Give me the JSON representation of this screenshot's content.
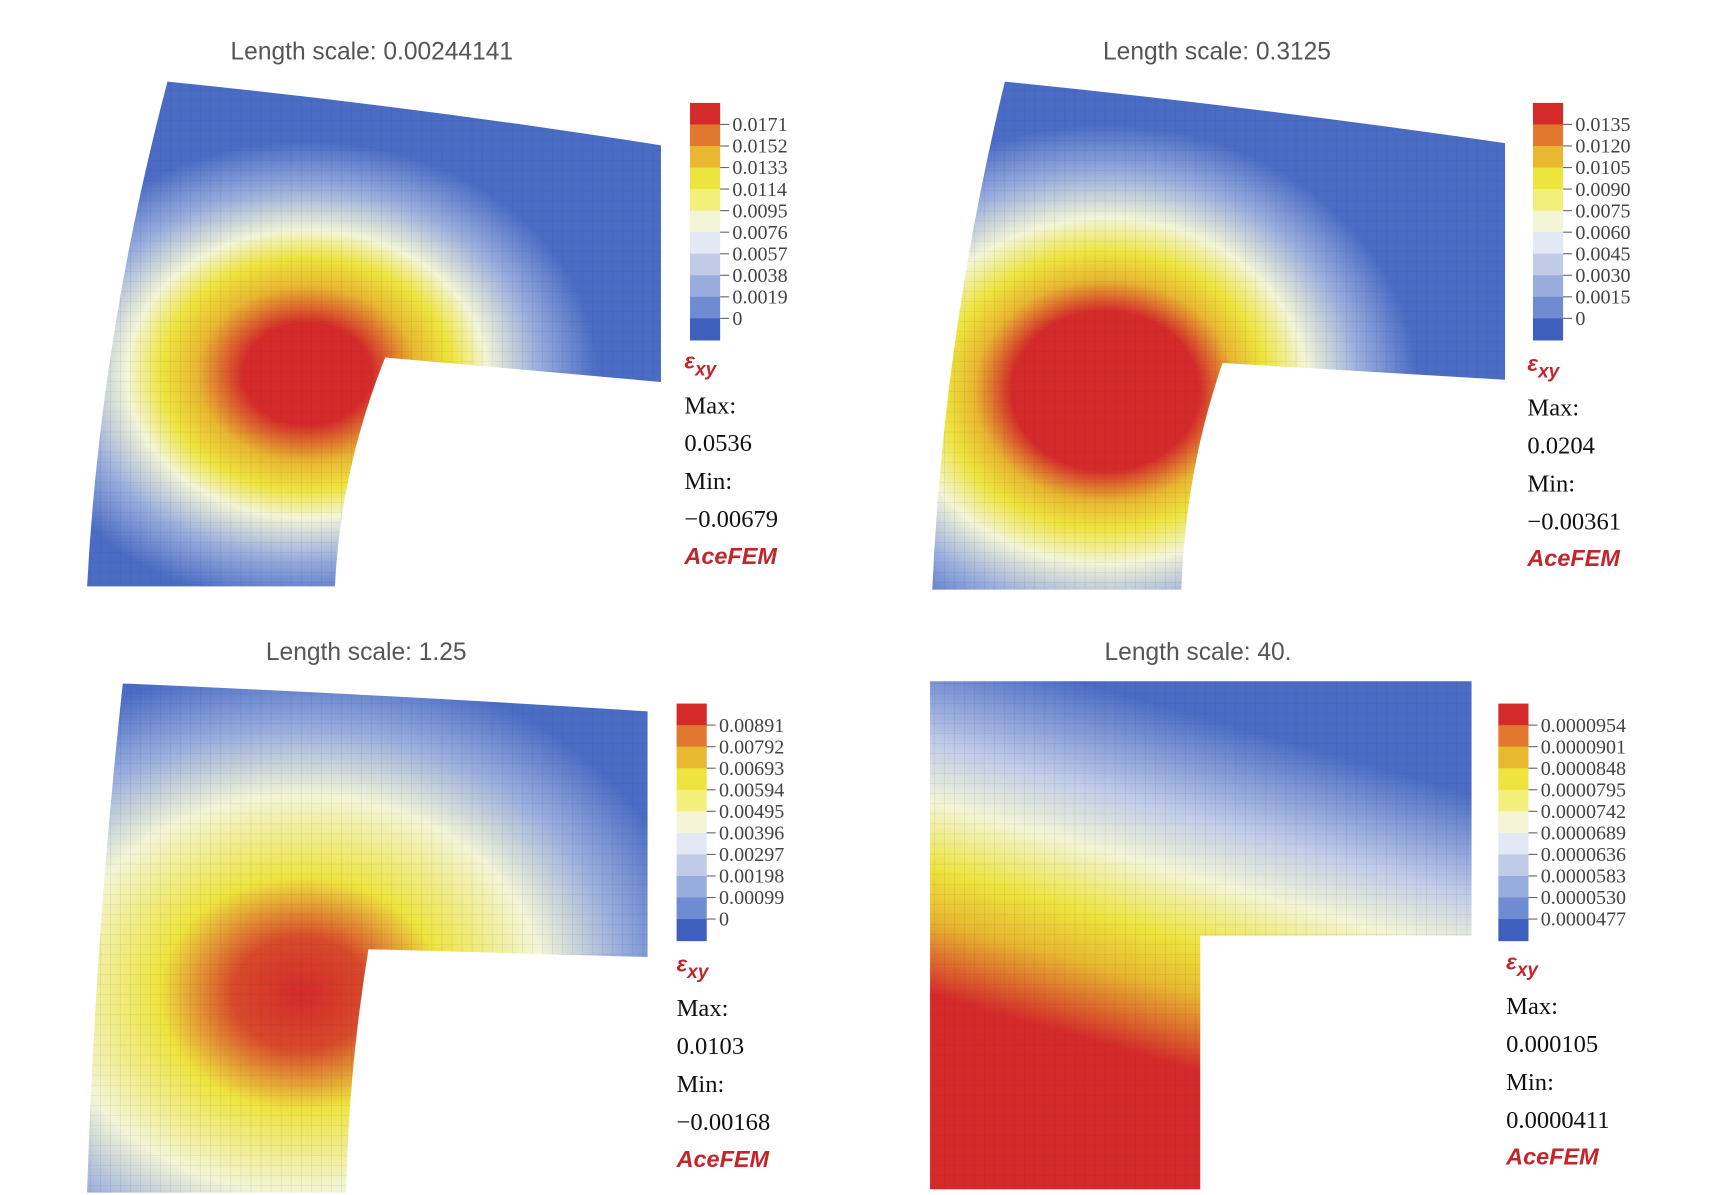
{
  "panels": [
    {
      "title": "Length scale: 0.00244141",
      "legend": [
        "0.0171",
        "0.0152",
        "0.0133",
        "0.0114",
        "0.0095",
        "0.0076",
        "0.0057",
        "0.0038",
        "0.0019",
        "0"
      ],
      "symbol": "ε",
      "subscript": "xy",
      "max_label": "Max:",
      "max": "0.0536",
      "min_label": "Min:",
      "min": "−0.00679",
      "brand": "AceFEM"
    },
    {
      "title": "Length scale: 0.3125",
      "legend": [
        "0.0135",
        "0.0120",
        "0.0105",
        "0.0090",
        "0.0075",
        "0.0060",
        "0.0045",
        "0.0030",
        "0.0015",
        "0"
      ],
      "symbol": "ε",
      "subscript": "xy",
      "max_label": "Max:",
      "max": "0.0204",
      "min_label": "Min:",
      "min": "−0.00361",
      "brand": "AceFEM"
    },
    {
      "title": "Length scale: 1.25",
      "legend": [
        "0.00891",
        "0.00792",
        "0.00693",
        "0.00594",
        "0.00495",
        "0.00396",
        "0.00297",
        "0.00198",
        "0.00099",
        "0"
      ],
      "symbol": "ε",
      "subscript": "xy",
      "max_label": "Max:",
      "max": "0.0103",
      "min_label": "Min:",
      "min": "−0.00168",
      "brand": "AceFEM"
    },
    {
      "title": "Length scale: 40.",
      "legend": [
        "0.0000954",
        "0.0000901",
        "0.0000848",
        "0.0000795",
        "0.0000742",
        "0.0000689",
        "0.0000636",
        "0.0000583",
        "0.0000530",
        "0.0000477"
      ],
      "symbol": "ε",
      "subscript": "xy",
      "max_label": "Max:",
      "max": "0.000105",
      "min_label": "Min:",
      "min": "0.0000411",
      "brand": "AceFEM"
    }
  ]
}
